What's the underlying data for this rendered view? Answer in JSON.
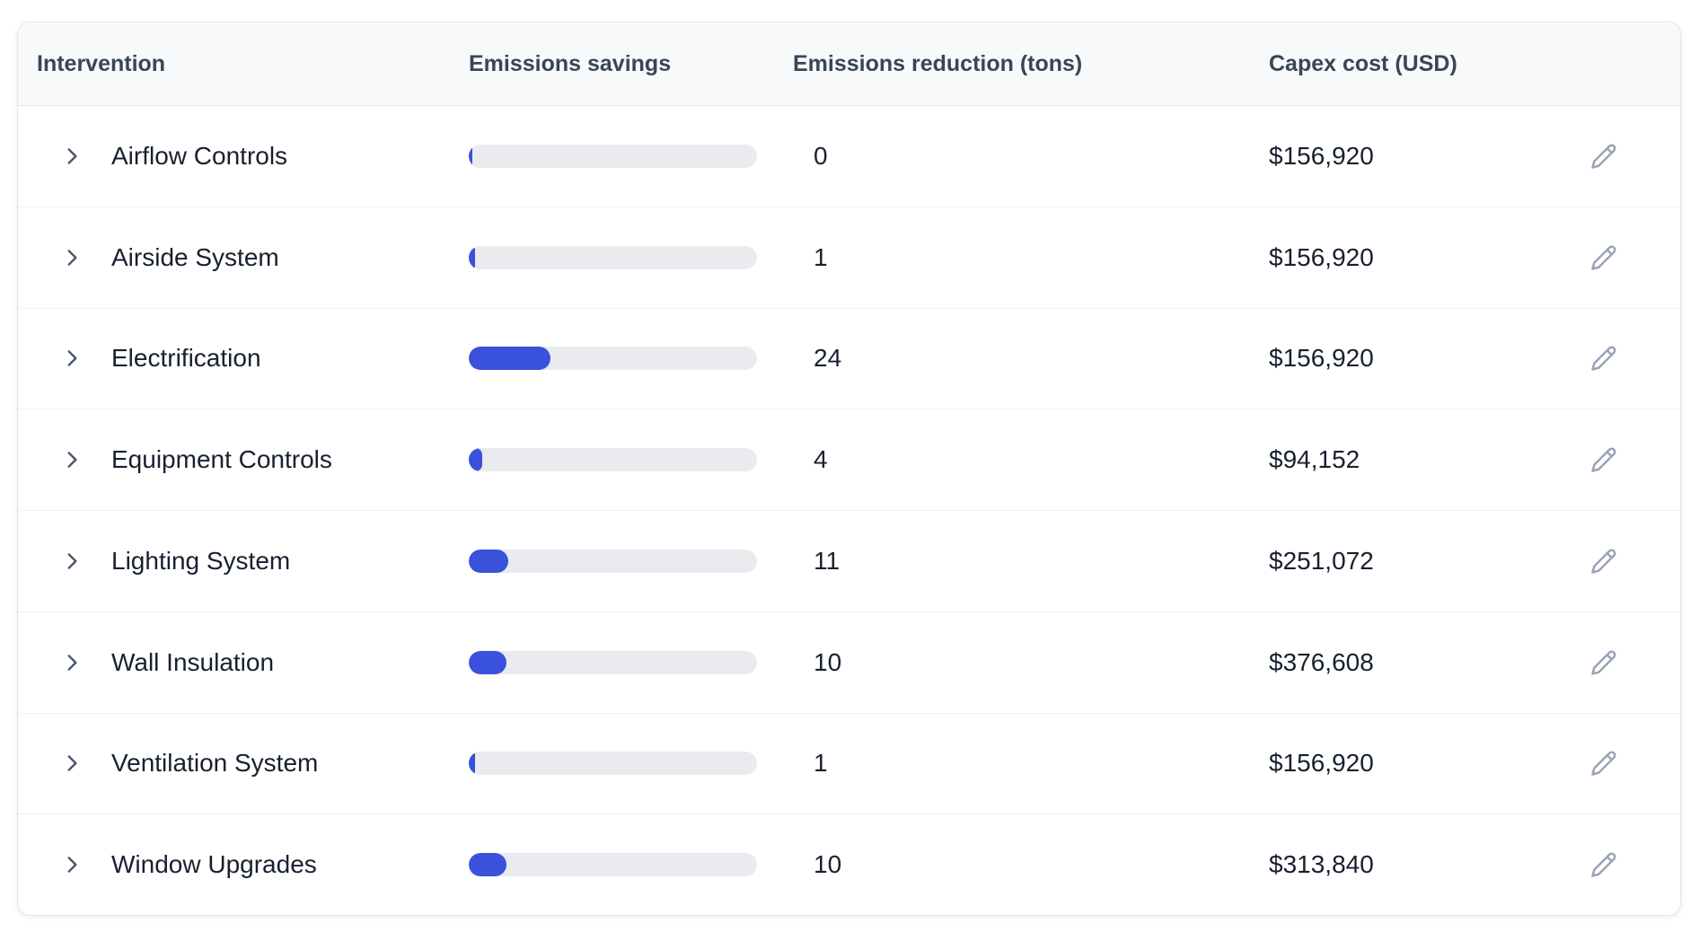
{
  "colors": {
    "bar_fill": "#3a51dc",
    "bar_track": "#e9ebef",
    "header_bg": "#f8f9fb",
    "header_text": "#3a4557",
    "cell_text": "#18202f",
    "icon_gray": "#9aa3b6"
  },
  "table": {
    "columns": [
      {
        "label": "Intervention"
      },
      {
        "label": "Emissions savings"
      },
      {
        "label": "Emissions reduction (tons)"
      },
      {
        "label": "Capex cost (USD)"
      }
    ],
    "rows": [
      {
        "name": "Airflow Controls",
        "bar_percent": 1.2,
        "reduction_tons": "0",
        "capex": "$156,920"
      },
      {
        "name": "Airside System",
        "bar_percent": 2.1,
        "reduction_tons": "1",
        "capex": "$156,920"
      },
      {
        "name": "Electrification",
        "bar_percent": 28.3,
        "reduction_tons": "24",
        "capex": "$156,920"
      },
      {
        "name": "Equipment Controls",
        "bar_percent": 4.7,
        "reduction_tons": "4",
        "capex": "$94,152"
      },
      {
        "name": "Lighting System",
        "bar_percent": 13.7,
        "reduction_tons": "11",
        "capex": "$251,072"
      },
      {
        "name": "Wall Insulation",
        "bar_percent": 13.0,
        "reduction_tons": "10",
        "capex": "$376,608"
      },
      {
        "name": "Ventilation System",
        "bar_percent": 2.1,
        "reduction_tons": "1",
        "capex": "$156,920"
      },
      {
        "name": "Window Upgrades",
        "bar_percent": 13.0,
        "reduction_tons": "10",
        "capex": "$313,840"
      }
    ]
  }
}
